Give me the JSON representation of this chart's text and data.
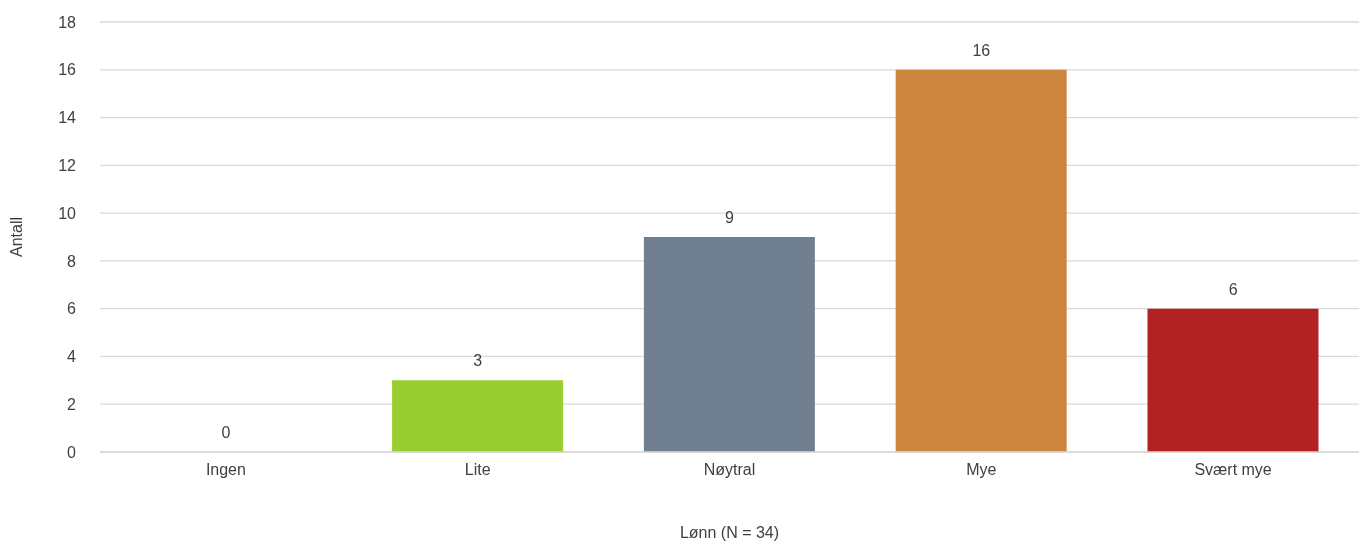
{
  "chart_data": {
    "type": "bar",
    "xlabel": "Lønn (N = 34)",
    "ylabel": "Antall",
    "categories": [
      "Ingen",
      "Lite",
      "Nøytral",
      "Mye",
      "Svært mye"
    ],
    "values": [
      0,
      3,
      9,
      16,
      6
    ],
    "colors": [
      null,
      "#9acd32",
      "#708090",
      "#cd853f",
      "#b22222"
    ],
    "ylim": [
      0,
      18
    ],
    "yticks": [
      0,
      2,
      4,
      6,
      8,
      10,
      12,
      14,
      16,
      18
    ],
    "grid": "y",
    "data_labels": true,
    "legend": false
  }
}
